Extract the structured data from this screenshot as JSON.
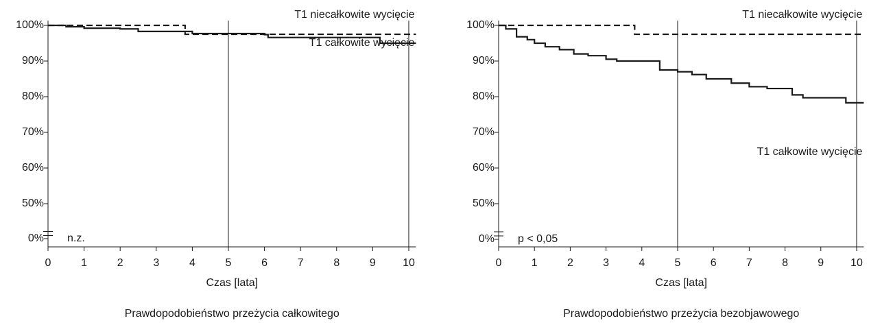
{
  "chart_data": [
    {
      "type": "line",
      "step": "post",
      "x_label": "Czas [lata]",
      "caption": "Prawdopodobieństwo przeżycia całkowitego",
      "annotation": "n.z.",
      "xlim": [
        0,
        10.2
      ],
      "xticks": [
        0,
        1,
        2,
        3,
        4,
        5,
        6,
        7,
        8,
        9,
        10
      ],
      "vlines": [
        5,
        10
      ],
      "ylim": [
        0,
        100
      ],
      "y_break": true,
      "yticks": [
        {
          "value": 0,
          "label": "0%"
        },
        {
          "value": 50,
          "label": "50%"
        },
        {
          "value": 60,
          "label": "60%"
        },
        {
          "value": 70,
          "label": "70%"
        },
        {
          "value": 80,
          "label": "80%"
        },
        {
          "value": 90,
          "label": "90%"
        },
        {
          "value": 100,
          "label": "100%"
        }
      ],
      "series": [
        {
          "name": "T1 niecałkowite wycięcie",
          "color": "#1a1a1a",
          "line_style": "dashed",
          "x": [
            0,
            3.8,
            10.2
          ],
          "values": [
            100,
            97.5,
            97.5
          ]
        },
        {
          "name": "T1 całkowite wycięcie",
          "color": "#1a1a1a",
          "line_style": "solid",
          "x": [
            0,
            0.5,
            1,
            2,
            2.5,
            3.5,
            4,
            6,
            6.1,
            9.2,
            10.2
          ],
          "values": [
            100,
            99.6,
            99.2,
            99,
            98.3,
            98.3,
            97.7,
            97.4,
            96.6,
            95,
            95
          ]
        }
      ]
    },
    {
      "type": "line",
      "step": "post",
      "x_label": "Czas [lata]",
      "caption": "Prawdopodobieństwo przeżycia bezobjawowego",
      "annotation": "p < 0,05",
      "xlim": [
        0,
        10.2
      ],
      "xticks": [
        0,
        1,
        2,
        3,
        4,
        5,
        6,
        7,
        8,
        9,
        10
      ],
      "vlines": [
        5,
        10
      ],
      "ylim": [
        0,
        100
      ],
      "y_break": true,
      "yticks": [
        {
          "value": 0,
          "label": "0%"
        },
        {
          "value": 50,
          "label": "50%"
        },
        {
          "value": 60,
          "label": "60%"
        },
        {
          "value": 70,
          "label": "70%"
        },
        {
          "value": 80,
          "label": "80%"
        },
        {
          "value": 90,
          "label": "90%"
        },
        {
          "value": 100,
          "label": "100%"
        }
      ],
      "series": [
        {
          "name": "T1 niecałkowite wycięcie",
          "color": "#1a1a1a",
          "line_style": "dashed",
          "x": [
            0,
            3.8,
            10.2
          ],
          "values": [
            100,
            97.5,
            97.5
          ]
        },
        {
          "name": "T1 całkowite wycięcie",
          "color": "#1a1a1a",
          "line_style": "solid",
          "x": [
            0,
            0.2,
            0.5,
            0.8,
            1,
            1.3,
            1.7,
            2.1,
            2.5,
            3,
            3.3,
            4.5,
            5,
            5.4,
            5.8,
            6.5,
            7,
            7.5,
            8.2,
            8.5,
            9.7,
            10.2
          ],
          "values": [
            100,
            99,
            96.8,
            96,
            95,
            94,
            93.2,
            92,
            91.5,
            90.5,
            90,
            87.5,
            87,
            86.2,
            85,
            83.8,
            82.8,
            82.3,
            80.5,
            79.7,
            78.3,
            78.3
          ]
        }
      ]
    }
  ]
}
